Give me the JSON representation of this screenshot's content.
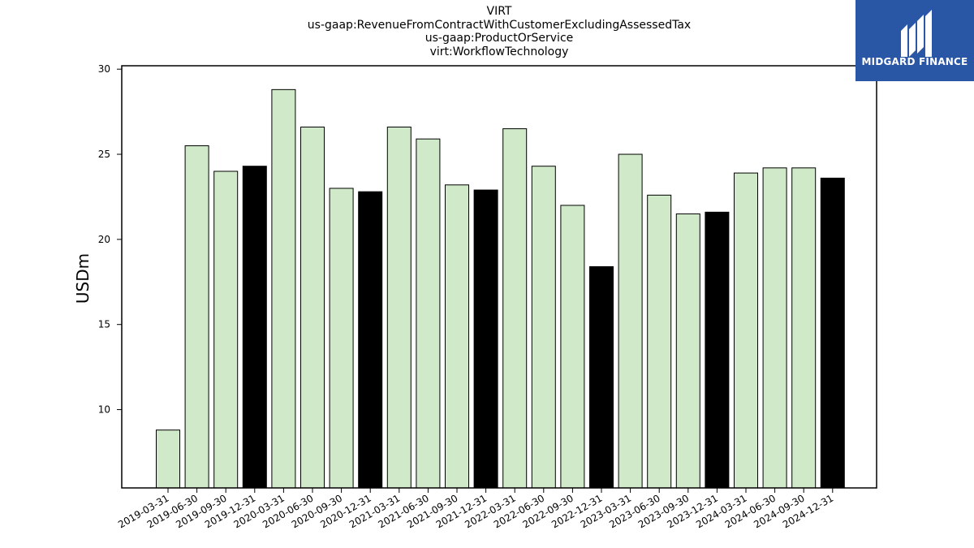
{
  "chart_data": {
    "type": "bar",
    "title_lines": [
      "VIRT",
      "us-gaap:RevenueFromContractWithCustomerExcludingAssessedTax",
      "us-gaap:ProductOrService",
      "virt:WorkflowTechnology"
    ],
    "xlabel": "",
    "ylabel": "USDm",
    "ylim": [
      5.4,
      30.2
    ],
    "yticks": [
      10,
      15,
      20,
      25,
      30
    ],
    "grid": false,
    "categories": [
      "2019-03-31",
      "2019-06-30",
      "2019-09-30",
      "2019-12-31",
      "2020-03-31",
      "2020-06-30",
      "2020-09-30",
      "2020-12-31",
      "2021-03-31",
      "2021-06-30",
      "2021-09-30",
      "2021-12-31",
      "2022-03-31",
      "2022-06-30",
      "2022-09-30",
      "2022-12-31",
      "2023-03-31",
      "2023-06-30",
      "2023-09-30",
      "2023-12-31",
      "2024-03-31",
      "2024-06-30",
      "2024-09-30",
      "2024-12-31"
    ],
    "values": [
      8.8,
      25.5,
      24.0,
      24.3,
      28.8,
      26.6,
      23.0,
      22.8,
      26.6,
      25.9,
      23.2,
      22.9,
      26.5,
      24.3,
      22.0,
      18.4,
      25.0,
      22.6,
      21.5,
      21.6,
      23.9,
      24.2,
      24.2,
      23.6
    ],
    "colors": {
      "quarter": "#d0e9c9",
      "year_end": "#000000",
      "edge": "#000000"
    }
  },
  "logo": {
    "text": "MIDGARD FINANCE",
    "background": "#2a56a6"
  }
}
